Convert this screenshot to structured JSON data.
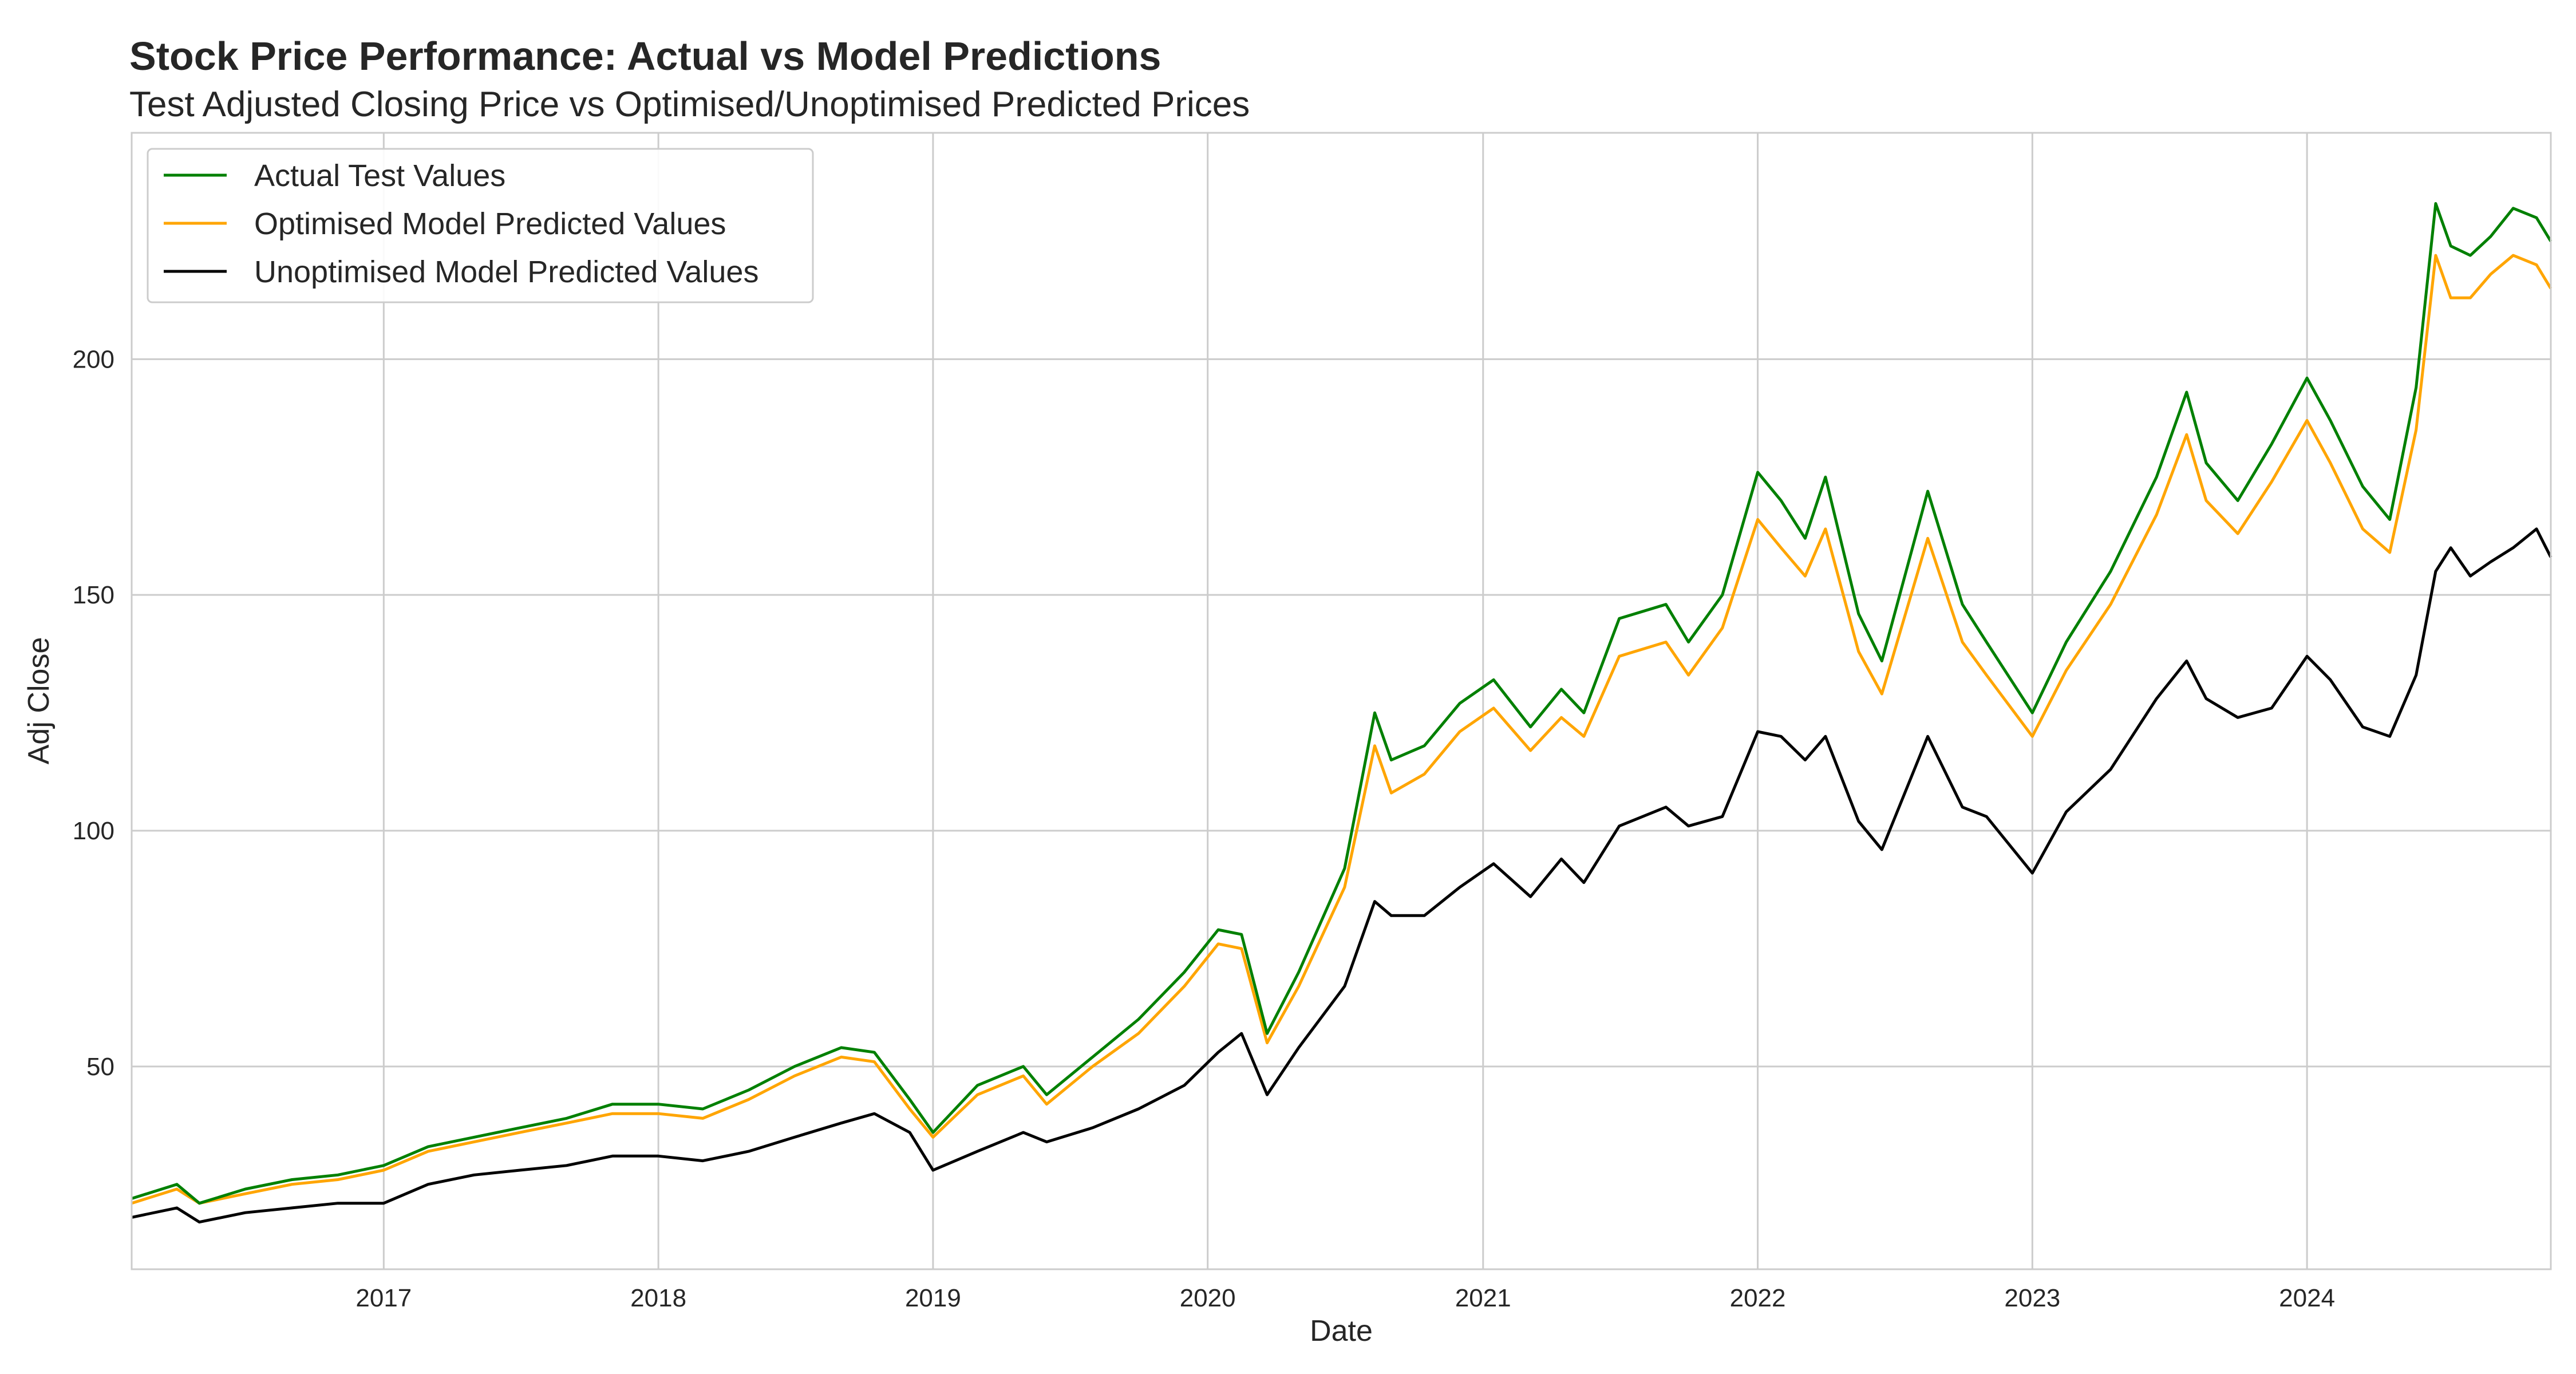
{
  "chart_data": {
    "type": "line",
    "title": "Stock Price Performance: Actual vs Model Predictions",
    "subtitle": "Test Adjusted Closing Price vs Optimised/Unoptimised Predicted Prices",
    "xlabel": "Date",
    "ylabel": "Adj Close",
    "xlim": [
      "2016-02-01",
      "2024-11-20"
    ],
    "ylim": [
      7,
      248
    ],
    "x_ticks": [
      "2017",
      "2018",
      "2019",
      "2020",
      "2021",
      "2022",
      "2023",
      "2024"
    ],
    "y_ticks": [
      50,
      100,
      150,
      200
    ],
    "grid": true,
    "legend_position": "top-left",
    "x": [
      "2016-02-01",
      "2016-04-01",
      "2016-05-01",
      "2016-07-01",
      "2016-09-01",
      "2016-11-01",
      "2017-01-01",
      "2017-03-01",
      "2017-05-01",
      "2017-07-01",
      "2017-09-01",
      "2017-11-01",
      "2018-01-01",
      "2018-03-01",
      "2018-05-01",
      "2018-07-01",
      "2018-09-01",
      "2018-10-15",
      "2018-12-01",
      "2019-01-01",
      "2019-03-01",
      "2019-05-01",
      "2019-06-01",
      "2019-08-01",
      "2019-10-01",
      "2019-12-01",
      "2020-01-15",
      "2020-02-15",
      "2020-03-20",
      "2020-05-01",
      "2020-07-01",
      "2020-08-10",
      "2020-09-01",
      "2020-10-15",
      "2020-12-01",
      "2021-01-15",
      "2021-03-05",
      "2021-04-15",
      "2021-05-15",
      "2021-07-01",
      "2021-09-01",
      "2021-10-01",
      "2021-11-15",
      "2022-01-01",
      "2022-02-01",
      "2022-03-05",
      "2022-04-01",
      "2022-05-15",
      "2022-06-15",
      "2022-08-15",
      "2022-09-30",
      "2022-11-01",
      "2023-01-01",
      "2023-02-15",
      "2023-04-15",
      "2023-06-15",
      "2023-07-25",
      "2023-08-20",
      "2023-10-01",
      "2023-11-15",
      "2024-01-01",
      "2024-02-01",
      "2024-03-15",
      "2024-04-20",
      "2024-05-25",
      "2024-06-20",
      "2024-07-10",
      "2024-08-05",
      "2024-09-01",
      "2024-10-01",
      "2024-11-01",
      "2024-11-20"
    ],
    "series": [
      {
        "name": "Actual Test Values",
        "color": "#008000",
        "values": [
          22,
          25,
          21,
          24,
          26,
          27,
          29,
          33,
          35,
          37,
          39,
          42,
          42,
          41,
          45,
          50,
          54,
          53,
          43,
          36,
          46,
          50,
          44,
          52,
          60,
          70,
          79,
          78,
          57,
          70,
          92,
          125,
          115,
          118,
          127,
          132,
          122,
          130,
          125,
          145,
          148,
          140,
          150,
          176,
          170,
          162,
          175,
          146,
          136,
          172,
          148,
          140,
          125,
          140,
          155,
          175,
          193,
          178,
          170,
          182,
          196,
          187,
          173,
          166,
          194,
          233,
          224,
          222,
          226,
          232,
          230,
          225
        ]
      },
      {
        "name": "Optimised Model Predicted Values",
        "color": "#ffa500",
        "values": [
          21,
          24,
          21,
          23,
          25,
          26,
          28,
          32,
          34,
          36,
          38,
          40,
          40,
          39,
          43,
          48,
          52,
          51,
          41,
          35,
          44,
          48,
          42,
          50,
          57,
          67,
          76,
          75,
          55,
          67,
          88,
          118,
          108,
          112,
          121,
          126,
          117,
          124,
          120,
          137,
          140,
          133,
          143,
          166,
          160,
          154,
          164,
          138,
          129,
          162,
          140,
          133,
          120,
          134,
          148,
          167,
          184,
          170,
          163,
          174,
          187,
          178,
          164,
          159,
          185,
          222,
          213,
          213,
          218,
          222,
          220,
          215
        ]
      },
      {
        "name": "Unoptimised Model Predicted Values",
        "color": "#000000",
        "values": [
          18,
          20,
          17,
          19,
          20,
          21,
          21,
          25,
          27,
          28,
          29,
          31,
          31,
          30,
          32,
          35,
          38,
          40,
          36,
          28,
          32,
          36,
          34,
          37,
          41,
          46,
          53,
          57,
          44,
          54,
          67,
          85,
          82,
          82,
          88,
          93,
          86,
          94,
          89,
          101,
          105,
          101,
          103,
          121,
          120,
          115,
          120,
          102,
          96,
          120,
          105,
          103,
          91,
          104,
          113,
          128,
          136,
          128,
          124,
          126,
          137,
          132,
          122,
          120,
          133,
          155,
          160,
          154,
          157,
          160,
          164,
          158
        ]
      }
    ]
  }
}
